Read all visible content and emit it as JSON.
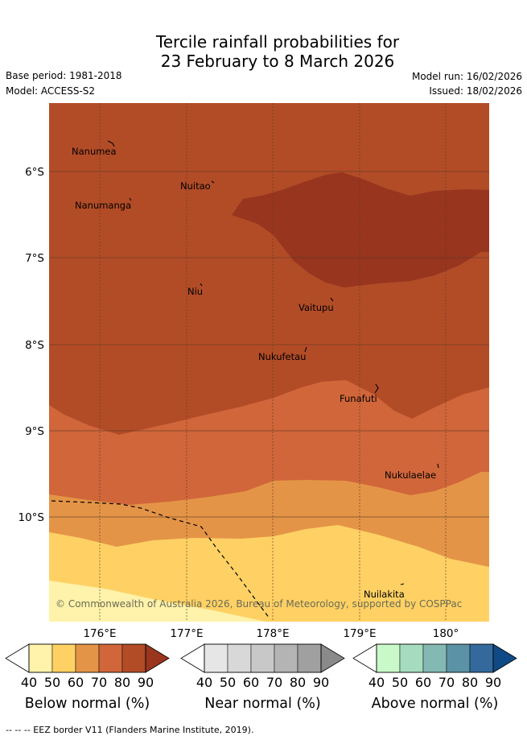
{
  "title": {
    "line1": "Tercile rainfall probabilities for",
    "line2": "23 February to 8 March 2026"
  },
  "meta": {
    "base_period": "Base period: 1981-2018",
    "model": "Model: ACCESS-S2",
    "model_run": "Model run: 16/02/2026",
    "issued": "Issued: 18/02/2026"
  },
  "map": {
    "lon_labels": [
      "176°E",
      "177°E",
      "178°E",
      "179°E",
      "180°"
    ],
    "lat_labels": [
      "6°S",
      "7°S",
      "8°S",
      "9°S",
      "10°S"
    ],
    "places": [
      {
        "name": "Nanumea"
      },
      {
        "name": "Nuitao"
      },
      {
        "name": "Nanumanga"
      },
      {
        "name": "Niu"
      },
      {
        "name": "Vaitupu"
      },
      {
        "name": "Nukufetau"
      },
      {
        "name": "Funafuti"
      },
      {
        "name": "Nukulaelae"
      },
      {
        "name": "Nuilakita"
      }
    ],
    "copyright": "© Commonwealth of Australia 2026, Bureau of Meteorology, supported by COSPPac"
  },
  "colorbars": [
    {
      "caption": "Below normal (%)",
      "ticks": [
        "40",
        "50",
        "60",
        "70",
        "80",
        "90"
      ],
      "colors": [
        "#fff2aa",
        "#ffd164",
        "#e49447",
        "#d0663a",
        "#b24c27",
        "#9a351e"
      ]
    },
    {
      "caption": "Near normal (%)",
      "ticks": [
        "40",
        "50",
        "60",
        "70",
        "80",
        "90"
      ],
      "colors": [
        "#e6e6e6",
        "#d8d8d8",
        "#c8c8c8",
        "#b4b4b4",
        "#a0a0a0",
        "#8a8a8a"
      ]
    },
    {
      "caption": "Above normal (%)",
      "ticks": [
        "40",
        "50",
        "60",
        "70",
        "80",
        "90"
      ],
      "colors": [
        "#c9f8c9",
        "#a5dcbf",
        "#84b9b3",
        "#5c92a5",
        "#34699c",
        "#104a86"
      ]
    }
  ],
  "footer": "--  --  -- EEZ border V11 (Flanders Marine Institute, 2019)."
}
